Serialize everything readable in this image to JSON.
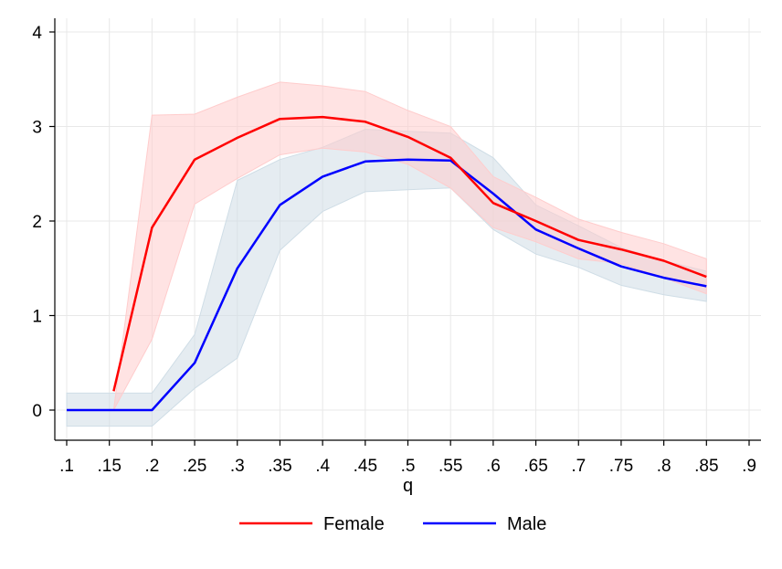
{
  "chart_data": {
    "type": "line",
    "title": "",
    "xlabel": "q",
    "ylabel": "",
    "x": [
      0.1,
      0.15,
      0.2,
      0.25,
      0.3,
      0.35,
      0.4,
      0.45,
      0.5,
      0.55,
      0.6,
      0.65,
      0.7,
      0.75,
      0.8,
      0.85
    ],
    "x_tick_values": [
      0.1,
      0.15,
      0.2,
      0.25,
      0.3,
      0.35,
      0.4,
      0.45,
      0.5,
      0.55,
      0.6,
      0.65,
      0.7,
      0.75,
      0.8,
      0.85,
      0.9
    ],
    "x_tick_labels": [
      ".1",
      ".15",
      ".2",
      ".25",
      ".3",
      ".35",
      ".4",
      ".45",
      ".5",
      ".55",
      ".6",
      ".65",
      ".7",
      ".75",
      ".8",
      ".85",
      ".9"
    ],
    "y_tick_values": [
      0,
      1,
      2,
      3,
      4
    ],
    "y_tick_labels": [
      "0",
      "1",
      "2",
      "3",
      "4"
    ],
    "xlim": [
      0.1,
      0.9
    ],
    "ylim": [
      -0.32,
      4.1
    ],
    "grid": true,
    "legend_position": "bottom",
    "series": [
      {
        "name": "Female",
        "color": "#ff0000",
        "band_color": "#ffcccc",
        "x": [
          0.155,
          0.2,
          0.25,
          0.3,
          0.35,
          0.4,
          0.45,
          0.5,
          0.55,
          0.6,
          0.65,
          0.7,
          0.75,
          0.8,
          0.85
        ],
        "y": [
          0.2,
          1.93,
          2.65,
          2.88,
          3.08,
          3.1,
          3.05,
          2.89,
          2.67,
          2.19,
          2.0,
          1.8,
          1.7,
          1.58,
          1.41
        ],
        "lower": [
          0.0,
          0.75,
          2.18,
          2.45,
          2.7,
          2.77,
          2.73,
          2.6,
          2.35,
          1.93,
          1.78,
          1.6,
          1.55,
          1.4,
          1.23
        ],
        "upper": [
          0.0,
          3.12,
          3.13,
          3.31,
          3.47,
          3.43,
          3.37,
          3.17,
          3.0,
          2.47,
          2.25,
          2.02,
          1.88,
          1.76,
          1.6
        ]
      },
      {
        "name": "Male",
        "color": "#0000ff",
        "band_color": "#cfdde6",
        "x": [
          0.1,
          0.15,
          0.2,
          0.25,
          0.3,
          0.35,
          0.4,
          0.45,
          0.5,
          0.55,
          0.6,
          0.65,
          0.7,
          0.75,
          0.8,
          0.85
        ],
        "y": [
          0.0,
          0.0,
          0.0,
          0.5,
          1.5,
          2.17,
          2.47,
          2.63,
          2.65,
          2.64,
          2.29,
          1.91,
          1.71,
          1.52,
          1.4,
          1.31
        ],
        "lower": [
          -0.17,
          -0.17,
          -0.17,
          0.23,
          0.55,
          1.69,
          2.1,
          2.31,
          2.33,
          2.35,
          1.91,
          1.65,
          1.51,
          1.32,
          1.22,
          1.15
        ],
        "upper": [
          0.18,
          0.18,
          0.18,
          0.8,
          2.43,
          2.65,
          2.78,
          2.97,
          2.95,
          2.93,
          2.67,
          2.17,
          1.95,
          1.72,
          1.58,
          1.47
        ]
      }
    ]
  }
}
